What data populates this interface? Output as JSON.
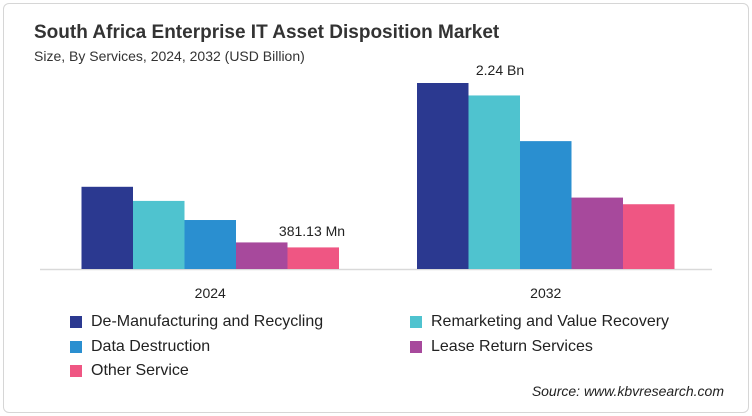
{
  "title": "South Africa Enterprise IT Asset Disposition Market",
  "subtitle": "Size, By Services, 2024, 2032 (USD Billion)",
  "source": "Source: www.kbvresearch.com",
  "chart_data": {
    "type": "bar",
    "title": "South Africa Enterprise IT Asset Disposition Market",
    "subtitle": "Size, By Services, 2024, 2032 (USD Billion)",
    "categories": [
      "2024",
      "2032"
    ],
    "series": [
      {
        "name": "De-Manufacturing and Recycling",
        "color": "#2b3990",
        "values": [
          0.99,
          2.24
        ]
      },
      {
        "name": "Remarketing and Value Recovery",
        "color": "#4fc3cf",
        "values": [
          0.82,
          2.09
        ]
      },
      {
        "name": "Data Destruction",
        "color": "#2a8fd0",
        "values": [
          0.59,
          1.54
        ]
      },
      {
        "name": "Lease Return Services",
        "color": "#a7499c",
        "values": [
          0.32,
          0.86
        ]
      },
      {
        "name": "Other Service",
        "color": "#ef5683",
        "values": [
          0.26,
          0.78
        ]
      }
    ],
    "annotations": [
      {
        "category": "2024",
        "text": "381.13 Mn"
      },
      {
        "category": "2032",
        "text": "2.24 Bn"
      }
    ],
    "ylim": [
      0,
      2.24
    ],
    "grid": false,
    "legend": "bottom"
  }
}
